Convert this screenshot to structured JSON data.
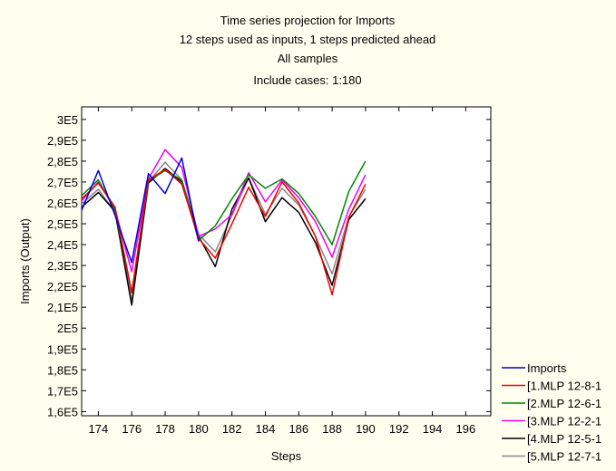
{
  "chart_data": {
    "type": "line",
    "title_lines": [
      "Time series projection for Imports",
      "12 steps used as inputs, 1 steps predicted ahead",
      "All samples",
      "Include cases: 1:180"
    ],
    "xlabel": "Steps",
    "ylabel": "Imports (Output)",
    "xlim": [
      173,
      197.5
    ],
    "ylim": [
      158000,
      306000
    ],
    "x_ticks": [
      174,
      176,
      178,
      180,
      182,
      184,
      186,
      188,
      190,
      192,
      194,
      196
    ],
    "y_ticks": [
      160000,
      170000,
      180000,
      190000,
      200000,
      210000,
      220000,
      230000,
      240000,
      250000,
      260000,
      270000,
      280000,
      290000,
      300000
    ],
    "y_tick_labels": [
      "1,6E5",
      "1,7E5",
      "1,8E5",
      "1,9E5",
      "2E5",
      "2,1E5",
      "2,2E5",
      "2,3E5",
      "2,4E5",
      "2,5E5",
      "2,6E5",
      "2,7E5",
      "2,8E5",
      "2,9E5",
      "3E5"
    ],
    "x": [
      173,
      174,
      175,
      176,
      177,
      178,
      179,
      180,
      181,
      182,
      183,
      184,
      185,
      186,
      187,
      188,
      189,
      190
    ],
    "grid": false,
    "legend_position": "bottom-right",
    "series": [
      {
        "name": "Imports",
        "color": "#0000dd",
        "values": [
          256500,
          275500,
          254000,
          231500,
          274000,
          264500,
          281500,
          241500,
          null,
          null,
          null,
          null,
          null,
          null,
          null,
          null,
          null,
          null
        ]
      },
      {
        "name": "[1.MLP 12-8-1",
        "color": "#ee0000",
        "values": [
          262000,
          269500,
          258000,
          217000,
          271000,
          276000,
          269000,
          243000,
          233500,
          250000,
          267500,
          253500,
          270000,
          260000,
          244000,
          216000,
          253000,
          269000
        ]
      },
      {
        "name": "[2.MLP 12-6-1",
        "color": "#008800",
        "values": [
          263500,
          271000,
          256500,
          217000,
          270500,
          275500,
          271000,
          242000,
          249000,
          262000,
          273500,
          267000,
          271500,
          264500,
          253500,
          240000,
          265500,
          280000
        ]
      },
      {
        "name": "[3.MLP 12-2-1",
        "color": "#ee00ee",
        "values": [
          261000,
          270000,
          257000,
          227000,
          271500,
          285500,
          277000,
          244000,
          247500,
          254500,
          274500,
          260500,
          271000,
          262500,
          251000,
          234000,
          257000,
          273500
        ]
      },
      {
        "name": "[4.MLP 12-5-1",
        "color": "#000000",
        "values": [
          258000,
          265000,
          256000,
          211000,
          269500,
          276500,
          270000,
          244000,
          229500,
          257000,
          272000,
          251000,
          262500,
          255500,
          241000,
          220500,
          252000,
          262000
        ]
      },
      {
        "name": "[5.MLP 12-7-1",
        "color": "#888888",
        "values": [
          259500,
          266500,
          255500,
          213000,
          270000,
          279500,
          271000,
          245000,
          236500,
          254000,
          272000,
          254500,
          267000,
          259000,
          244000,
          226000,
          253500,
          266500
        ]
      }
    ]
  }
}
